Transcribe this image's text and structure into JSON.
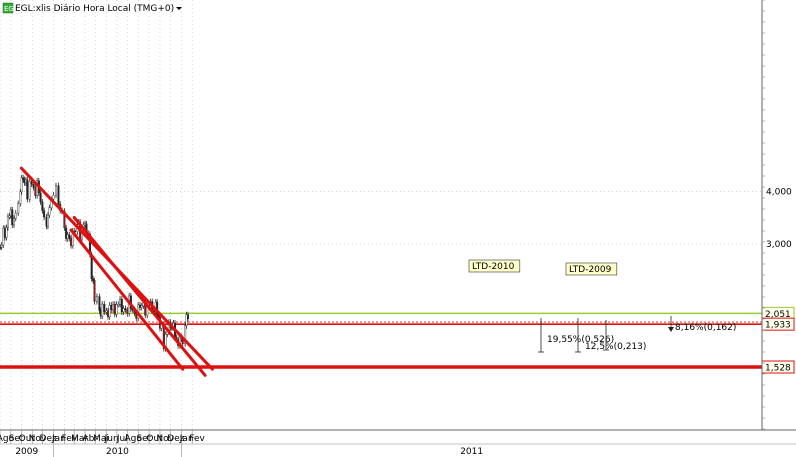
{
  "chart_data": {
    "type": "candlestick",
    "title": "EGL:xlis Diário Hora Local (TMG+0)",
    "instrument_badge": "EG",
    "y_axis": {
      "scale": "log",
      "ylim": [
        1.33,
        4.75
      ],
      "ticks": [
        "4,000",
        "3,000"
      ],
      "tick_values": [
        4.0,
        3.0
      ]
    },
    "x_axis": {
      "months": [
        "Ago",
        "Set",
        "Out",
        "Nov",
        "Dez",
        "Jan",
        "Fev",
        "Mar",
        "Abr",
        "Mai",
        "Jun",
        "Jul",
        "Ago",
        "Set",
        "Out",
        "Nov",
        "Dez",
        "Jan",
        "Fev"
      ],
      "years": [
        "2009",
        "2010",
        "2011"
      ]
    },
    "horizontal_levels": [
      {
        "label": "2,051",
        "value": 2.051,
        "color": "#99cc33"
      },
      {
        "label": "1,933",
        "value": 1.933,
        "color": "#dd1111"
      },
      {
        "label": "1,528",
        "value": 1.528,
        "color": "#dd1111"
      }
    ],
    "trendlines": [
      {
        "name": "upper",
        "from": [
          "2009-10-01",
          4.55
        ],
        "to": [
          "2011-03-31",
          1.51
        ]
      },
      {
        "name": "LTD-2010 upper",
        "from": [
          "2010-03-01",
          3.47
        ],
        "to": [
          "2011-03-10",
          1.46
        ]
      },
      {
        "name": "LTD-2010 lower",
        "from": [
          "2010-02-20",
          3.24
        ],
        "to": [
          "2011-01-05",
          1.51
        ]
      }
    ],
    "annotations": [
      "LTD-2010",
      "LTD-2009",
      "8,16%(0,162)",
      "19,55%(0,526)",
      "12,5%(0,213)"
    ],
    "series": [
      {
        "date_range": [
          "2009-08-01",
          "2011-01-25"
        ],
        "path": [
          [
            "2009-08-01",
            2.95
          ],
          [
            "2009-08-15",
            3.2
          ],
          [
            "2009-08-28",
            3.6
          ],
          [
            "2009-09-05",
            3.35
          ],
          [
            "2009-09-15",
            3.45
          ],
          [
            "2009-09-22",
            3.65
          ],
          [
            "2009-09-28",
            3.95
          ],
          [
            "2009-10-02",
            4.45
          ],
          [
            "2009-10-10",
            4.3
          ],
          [
            "2009-10-18",
            3.9
          ],
          [
            "2009-10-25",
            4.1
          ],
          [
            "2009-11-05",
            4.0
          ],
          [
            "2009-11-15",
            4.15
          ],
          [
            "2009-11-25",
            3.9
          ],
          [
            "2009-12-05",
            3.55
          ],
          [
            "2009-12-12",
            3.4
          ],
          [
            "2009-12-20",
            3.55
          ],
          [
            "2010-01-01",
            3.85
          ],
          [
            "2010-01-08",
            4.0
          ],
          [
            "2010-01-15",
            3.85
          ],
          [
            "2010-01-25",
            3.65
          ],
          [
            "2010-02-01",
            3.4
          ],
          [
            "2010-02-06",
            3.0
          ],
          [
            "2010-02-15",
            3.05
          ],
          [
            "2010-02-25",
            3.1
          ],
          [
            "2010-03-03",
            3.3
          ],
          [
            "2010-03-10",
            3.35
          ],
          [
            "2010-03-18",
            3.22
          ],
          [
            "2010-03-28",
            3.25
          ],
          [
            "2010-04-05",
            3.15
          ],
          [
            "2010-04-10",
            3.02
          ],
          [
            "2010-04-15",
            2.9
          ],
          [
            "2010-04-20",
            2.5
          ],
          [
            "2010-04-28",
            2.3
          ],
          [
            "2010-05-05",
            2.2
          ],
          [
            "2010-05-12",
            2.07
          ],
          [
            "2010-05-20",
            2.05
          ],
          [
            "2010-06-01",
            2.12
          ],
          [
            "2010-06-15",
            2.1
          ],
          [
            "2010-06-25",
            2.15
          ],
          [
            "2010-07-05",
            2.12
          ],
          [
            "2010-07-20",
            2.1
          ],
          [
            "2010-08-05",
            2.14
          ],
          [
            "2010-08-20",
            2.08
          ],
          [
            "2010-09-05",
            2.12
          ],
          [
            "2010-09-20",
            2.14
          ],
          [
            "2010-10-01",
            2.1
          ],
          [
            "2010-10-10",
            2.08
          ],
          [
            "2010-10-20",
            2.07
          ],
          [
            "2010-10-28",
            2.02
          ],
          [
            "2010-11-05",
            1.93
          ],
          [
            "2010-11-12",
            1.78
          ],
          [
            "2010-11-22",
            1.85
          ],
          [
            "2010-12-01",
            1.9
          ],
          [
            "2010-12-10",
            1.85
          ],
          [
            "2010-12-18",
            1.77
          ],
          [
            "2010-12-28",
            1.8
          ],
          [
            "2011-01-05",
            1.82
          ],
          [
            "2011-01-12",
            1.93
          ],
          [
            "2011-01-20",
            2.0
          ],
          [
            "2011-01-25",
            1.98
          ]
        ]
      }
    ]
  }
}
